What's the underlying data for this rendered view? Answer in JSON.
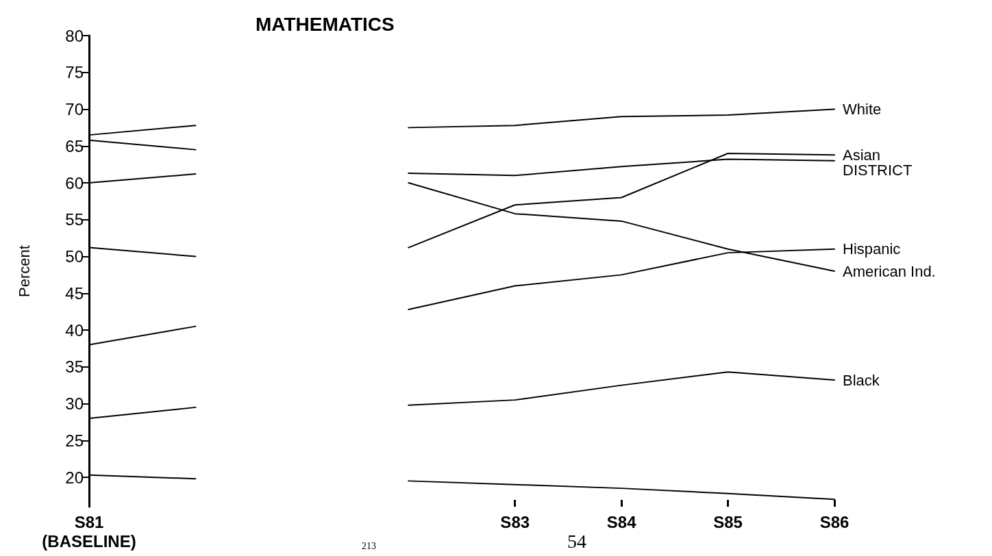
{
  "chart_data": {
    "type": "line",
    "title": "MATHEMATICS",
    "ylabel": "Percent",
    "categories": [
      "S81\n(BASELINE)",
      null,
      null,
      null,
      "S83",
      "S84",
      "S85",
      "S86"
    ],
    "ylim": [
      16,
      80
    ],
    "yticks": [
      20,
      25,
      30,
      35,
      40,
      45,
      50,
      55,
      60,
      65,
      70,
      75,
      80
    ],
    "grid": false,
    "legend": false,
    "marker": "none",
    "line_style": "solid",
    "series": [
      {
        "name": "White",
        "color": "#000000",
        "values": [
          66.5,
          67.8,
          null,
          67.5,
          67.8,
          69,
          69.2,
          70
        ]
      },
      {
        "name": "Asian",
        "color": "#000000",
        "values": [
          65.8,
          64.5,
          null,
          51.2,
          57,
          58,
          64,
          63.8
        ]
      },
      {
        "name": "DISTRICT",
        "color": "#000000",
        "values": [
          60,
          61.2,
          null,
          61.3,
          61,
          62.2,
          63.2,
          63
        ]
      },
      {
        "name": "Hispanic",
        "color": "#000000",
        "values": [
          38,
          40.5,
          null,
          42.8,
          46,
          47.5,
          50.5,
          51
        ]
      },
      {
        "name": "American Ind.",
        "color": "#000000",
        "values": [
          51.2,
          50,
          null,
          60,
          55.8,
          54.8,
          51,
          48
        ]
      },
      {
        "name": "Black",
        "color": "#000000",
        "values": [
          28,
          29.5,
          null,
          29.8,
          30.5,
          32.5,
          34.3,
          33.2
        ]
      },
      {
        "color": "#000000",
        "values": [
          20.3,
          19.8,
          null,
          19.5,
          19,
          18.5,
          17.8,
          17
        ]
      }
    ],
    "annotations": [
      "213",
      "54"
    ]
  }
}
